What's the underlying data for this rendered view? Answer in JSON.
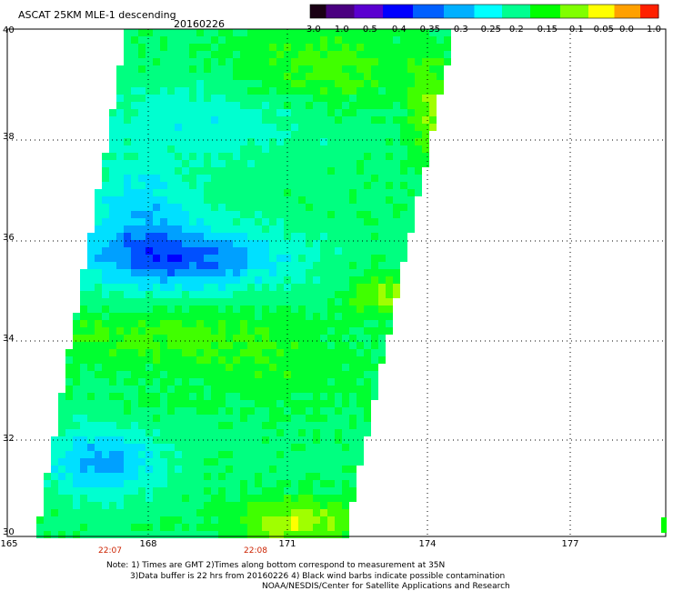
{
  "header": {
    "title": "ASCAT 25KM MLE-1 descending",
    "date": "20160226"
  },
  "colorbar": {
    "labels": [
      "-3.0",
      "-1.0",
      "-0.5",
      "-0.4",
      "-0.35",
      "-0.3",
      "-0.25",
      "-0.2",
      "-0.15",
      "-0.1",
      "-0.05",
      "0.0",
      "1.0"
    ],
    "colors": [
      "#1a0014",
      "#4a0080",
      "#5a00d0",
      "#0000ff",
      "#0060ff",
      "#00b0ff",
      "#00ffff",
      "#00ff90",
      "#00ff00",
      "#80ff00",
      "#ffff00",
      "#ffa000",
      "#ff2000"
    ]
  },
  "axes": {
    "lat_labels": [
      "40",
      "38",
      "36",
      "34",
      "32",
      "30"
    ],
    "lon_labels": [
      "165",
      "168",
      "171",
      "174",
      "177"
    ],
    "lat_range": [
      30,
      40
    ],
    "lon_range": [
      165,
      180
    ]
  },
  "times": [
    "22:07",
    "22:08"
  ],
  "notes": [
    "Note: 1) Times are GMT 2)Times along bottom correspond to measurement at 35N",
    "3)Data buffer is 22 hrs from 20160226 4) Black wind barbs indicate possible contamination",
    "NOAA/NESDIS/Center for Satellite Applications and Research"
  ]
}
